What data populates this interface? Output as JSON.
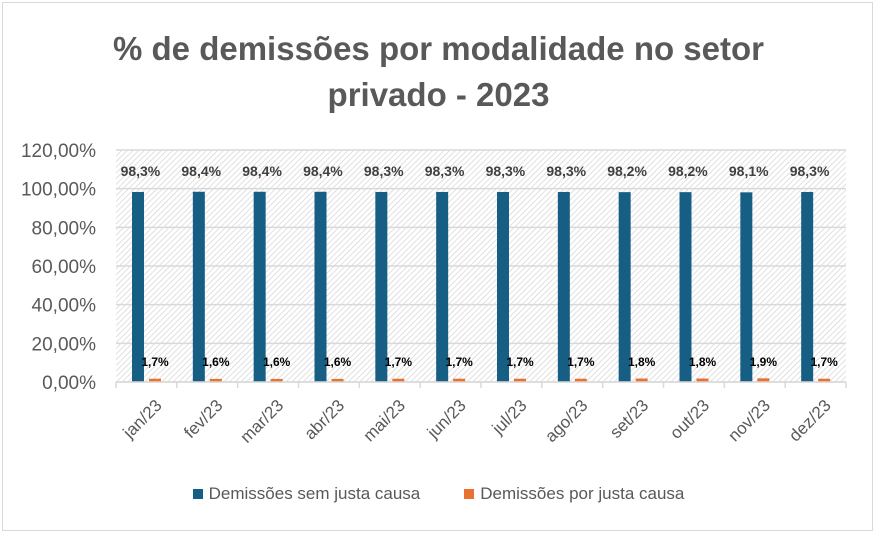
{
  "chart_data": {
    "type": "bar",
    "title_lines": [
      "% de demissões por modalidade no setor",
      "privado - 2023"
    ],
    "categories": [
      "jan/23",
      "fev/23",
      "mar/23",
      "abr/23",
      "mai/23",
      "jun/23",
      "jul/23",
      "ago/23",
      "set/23",
      "out/23",
      "nov/23",
      "dez/23"
    ],
    "series": [
      {
        "name": "Demissões sem justa causa",
        "color": "#165e83",
        "values": [
          98.3,
          98.4,
          98.4,
          98.4,
          98.3,
          98.3,
          98.3,
          98.3,
          98.2,
          98.2,
          98.1,
          98.3
        ],
        "labels": [
          "98,3%",
          "98,4%",
          "98,4%",
          "98,4%",
          "98,3%",
          "98,3%",
          "98,3%",
          "98,3%",
          "98,2%",
          "98,2%",
          "98,1%",
          "98,3%"
        ]
      },
      {
        "name": "Demissões por justa causa",
        "color": "#e97132",
        "values": [
          1.7,
          1.6,
          1.6,
          1.6,
          1.7,
          1.7,
          1.7,
          1.7,
          1.8,
          1.8,
          1.9,
          1.7
        ],
        "labels": [
          "1,7%",
          "1,6%",
          "1,6%",
          "1,6%",
          "1,7%",
          "1,7%",
          "1,7%",
          "1,7%",
          "1,8%",
          "1,8%",
          "1,9%",
          "1,7%"
        ]
      }
    ],
    "ylim": [
      0,
      120
    ],
    "yticks": [
      0,
      20,
      40,
      60,
      80,
      100,
      120
    ],
    "ytick_labels": [
      "0,00%",
      "20,00%",
      "40,00%",
      "60,00%",
      "80,00%",
      "100,00%",
      "120,00%"
    ],
    "grid": true,
    "legend": "bottom"
  }
}
